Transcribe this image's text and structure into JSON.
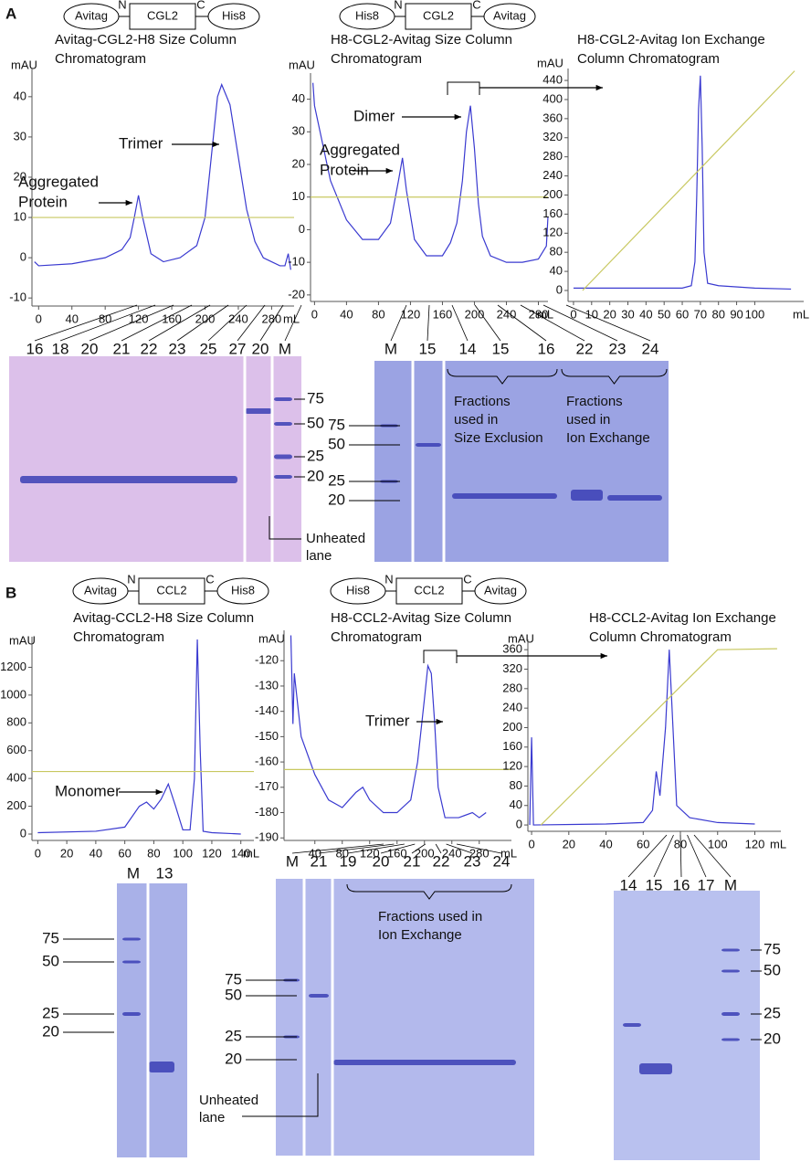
{
  "panel_labels": [
    "A",
    "B"
  ],
  "constructs": [
    {
      "parts": [
        "Avitag",
        "N",
        "CGL2",
        "C",
        "His8"
      ]
    },
    {
      "parts": [
        "His8",
        "N",
        "CGL2",
        "C",
        "Avitag"
      ]
    },
    {
      "parts": [
        "Avitag",
        "N",
        "CCL2",
        "C",
        "His8"
      ]
    },
    {
      "parts": [
        "His8",
        "N",
        "CCL2",
        "C",
        "Avitag"
      ]
    }
  ],
  "chart_data": [
    {
      "type": "line",
      "title": [
        "Avitag-CGL2-H8 Size Column",
        "Chromatogram"
      ],
      "y_label": "mAU",
      "x_label": "mL",
      "xlim": [
        -8,
        307
      ],
      "ylim": [
        -12,
        47
      ],
      "xticks": [
        0,
        40,
        80,
        120,
        160,
        200,
        240,
        280
      ],
      "yticks": [
        -10,
        0,
        10,
        20,
        30,
        40
      ],
      "series": [
        {
          "color": "#3a3ad0",
          "x": [
            -5,
            0,
            40,
            80,
            100,
            110,
            115,
            120,
            125,
            135,
            150,
            170,
            190,
            200,
            210,
            215,
            220,
            230,
            240,
            250,
            260,
            270,
            280,
            290,
            296,
            300,
            303
          ],
          "values": [
            -1,
            -2,
            -1.5,
            0,
            2,
            5,
            10,
            15.5,
            10,
            1,
            -1,
            0,
            3,
            10,
            30,
            40,
            43,
            38,
            25,
            12,
            4,
            0,
            -1,
            -2,
            -2,
            1,
            -3
          ]
        },
        {
          "color": "#c8c860",
          "x": [
            -8,
            307
          ],
          "values": [
            10,
            10
          ]
        }
      ],
      "annotations": [
        [
          "Aggregated",
          "Protein"
        ],
        [
          "Trimer"
        ]
      ]
    },
    {
      "type": "line",
      "title": [
        "H8-CGL2-Avitag Size Column",
        "Chromatogram"
      ],
      "y_label": "mAU",
      "x_label": "mL",
      "xlim": [
        -5,
        292
      ],
      "ylim": [
        -22,
        48
      ],
      "xticks": [
        0,
        40,
        80,
        120,
        160,
        200,
        240,
        280
      ],
      "yticks": [
        -20,
        -10,
        0,
        10,
        20,
        30,
        40
      ],
      "series": [
        {
          "color": "#3a3ad0",
          "x": [
            -2,
            0,
            20,
            40,
            60,
            80,
            95,
            105,
            110,
            115,
            125,
            140,
            160,
            170,
            178,
            185,
            190,
            195,
            200,
            205,
            210,
            220,
            240,
            260,
            280,
            290,
            292
          ],
          "values": [
            45,
            38,
            15,
            3,
            -3,
            -3,
            2,
            15,
            22,
            12,
            -3,
            -8,
            -8,
            -4,
            2,
            15,
            30,
            38,
            25,
            8,
            -2,
            -8,
            -10,
            -10,
            -9,
            -5,
            4
          ]
        },
        {
          "color": "#c8c860",
          "x": [
            -5,
            292
          ],
          "values": [
            10,
            10
          ]
        }
      ],
      "annotations": [
        [
          "Aggregated",
          "Protein"
        ],
        [
          "Dimer"
        ]
      ]
    },
    {
      "type": "line",
      "title": [
        "H8-CGL2-Avitag Ion Exchange",
        "Column Chromatogram"
      ],
      "y_label": "mAU",
      "x_label": "mL",
      "xlim": [
        -3,
        127
      ],
      "ylim": [
        -23,
        465
      ],
      "xticks": [
        0,
        10,
        20,
        30,
        40,
        50,
        60,
        70,
        80,
        90,
        100
      ],
      "yticks": [
        0,
        40,
        80,
        120,
        160,
        200,
        240,
        280,
        320,
        360,
        400,
        440
      ],
      "series": [
        {
          "color": "#3a3ad0",
          "x": [
            0,
            40,
            60,
            65,
            67,
            68,
            69,
            70,
            71,
            72,
            74,
            80,
            100,
            120
          ],
          "values": [
            5,
            5,
            5,
            10,
            60,
            200,
            380,
            450,
            300,
            80,
            15,
            10,
            5,
            3
          ]
        },
        {
          "color": "#c8c860",
          "x": [
            5,
            122
          ],
          "values": [
            0,
            460
          ]
        }
      ],
      "annotations": []
    },
    {
      "type": "line",
      "title": [
        "Avitag-CCL2-H8 Size Column",
        "Chromatogram"
      ],
      "y_label": "mAU",
      "x_label": "mL",
      "xlim": [
        -4,
        149
      ],
      "ylim": [
        -46,
        1420
      ],
      "xticks": [
        0,
        20,
        40,
        60,
        80,
        100,
        120,
        140
      ],
      "yticks": [
        0,
        200,
        400,
        600,
        800,
        1000,
        1200
      ],
      "series": [
        {
          "color": "#3a3ad0",
          "x": [
            0,
            40,
            60,
            70,
            75,
            80,
            85,
            90,
            95,
            100,
            105,
            108,
            110,
            112,
            114,
            120,
            140
          ],
          "values": [
            10,
            20,
            50,
            200,
            230,
            180,
            250,
            360,
            200,
            30,
            30,
            400,
            1400,
            600,
            20,
            10,
            0
          ]
        },
        {
          "color": "#c8c860",
          "x": [
            -4,
            149
          ],
          "values": [
            450,
            450
          ]
        }
      ],
      "annotations": [
        [
          "Monomer"
        ]
      ]
    },
    {
      "type": "line",
      "title": [
        "H8-CCL2-Avitag Size Column",
        "Chromatogram"
      ],
      "y_label": "mAU",
      "x_label": "mL",
      "xlim": [
        -5,
        327
      ],
      "ylim": [
        -191,
        -108
      ],
      "xticks": [
        40,
        80,
        120,
        160,
        200,
        240,
        280
      ],
      "yticks": [
        -190,
        -180,
        -170,
        -160,
        -150,
        -140,
        -130,
        -120
      ],
      "series": [
        {
          "color": "#3a3ad0",
          "x": [
            5,
            8,
            10,
            20,
            40,
            60,
            80,
            100,
            110,
            120,
            140,
            160,
            180,
            190,
            200,
            205,
            210,
            215,
            220,
            230,
            250,
            270,
            280,
            290
          ],
          "values": [
            -110,
            -145,
            -125,
            -150,
            -165,
            -175,
            -178,
            -172,
            -170,
            -175,
            -180,
            -180,
            -175,
            -160,
            -135,
            -122,
            -125,
            -145,
            -170,
            -182,
            -182,
            -180,
            -182,
            -180
          ]
        },
        {
          "color": "#c8c860",
          "x": [
            -5,
            327
          ],
          "values": [
            -163,
            -163
          ]
        }
      ],
      "annotations": [
        [
          "Trimer"
        ]
      ]
    },
    {
      "type": "line",
      "title": [
        "H8-CCL2-Avitag Ion Exchange",
        "Column Chromatogram"
      ],
      "y_label": "mAU",
      "x_label": "mL",
      "xlim": [
        -2,
        134
      ],
      "ylim": [
        -13,
        381
      ],
      "xticks": [
        0,
        20,
        40,
        60,
        80,
        100,
        120
      ],
      "yticks": [
        0,
        40,
        80,
        120,
        160,
        200,
        240,
        280,
        320,
        360
      ],
      "series": [
        {
          "color": "#3a3ad0",
          "x": [
            -1,
            0,
            1,
            40,
            60,
            65,
            67,
            69,
            72,
            74,
            76,
            78,
            85,
            100,
            120
          ],
          "values": [
            0,
            180,
            0,
            2,
            5,
            30,
            110,
            60,
            200,
            360,
            200,
            40,
            15,
            5,
            2
          ]
        },
        {
          "color": "#c8c860",
          "x": [
            5,
            100,
            132
          ],
          "values": [
            0,
            360,
            362
          ]
        }
      ],
      "annotations": []
    }
  ],
  "gels": [
    {
      "lanes": [
        "16",
        "18",
        "20",
        "21",
        "22",
        "23",
        "25",
        "27",
        "20",
        "M"
      ],
      "markers": [
        75,
        50,
        25,
        20
      ],
      "note": [
        "Unheated",
        "lane"
      ]
    },
    {
      "lanes": [
        "M",
        "15",
        "14",
        "15",
        "16",
        "22",
        "23",
        "24"
      ],
      "markers": [
        75,
        50,
        25,
        20
      ],
      "groups": [
        [
          "Fractions",
          "used in",
          "Size Exclusion"
        ],
        [
          "Fractions",
          "used in",
          "Ion Exchange"
        ]
      ]
    },
    {
      "lanes": [
        "M",
        "13"
      ],
      "markers": [
        75,
        50,
        25,
        20
      ]
    },
    {
      "lanes": [
        "M",
        "21",
        "19",
        "20",
        "21",
        "22",
        "23",
        "24"
      ],
      "markers": [
        75,
        50,
        25,
        20
      ],
      "groups": [
        [
          "Fractions used in",
          "Ion Exchange"
        ]
      ],
      "note": [
        "Unheated",
        "lane"
      ]
    },
    {
      "lanes": [
        "14",
        "15",
        "16",
        "17",
        "M"
      ],
      "markers": [
        75,
        50,
        25,
        20
      ]
    }
  ]
}
